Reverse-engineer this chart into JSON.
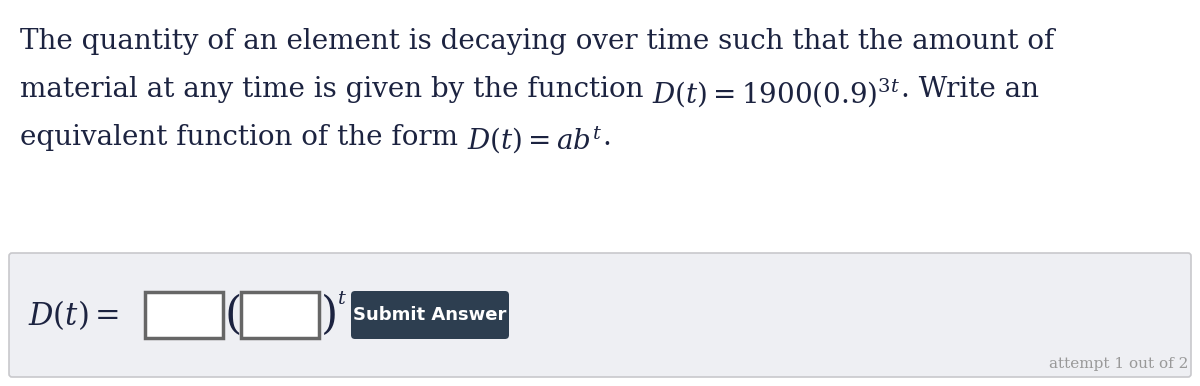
{
  "bg_color": "#ffffff",
  "answer_box_bg": "#eeeff3",
  "answer_box_border": "#c8c8cc",
  "input_box_color": "#ffffff",
  "input_box_border": "#666666",
  "button_color": "#2d3e50",
  "button_text_color": "#ffffff",
  "text_color": "#1c2340",
  "line1": "The quantity of an element is decaying over time such that the amount of",
  "line2_part1": "material at any time is given by the function ",
  "line2_math": "$D(t) = 1900(0.9)^{3t}$",
  "line2_part2": ". Write an",
  "line3_part1": "equivalent function of the form ",
  "line3_math": "$D(t) = ab^t$",
  "line3_part2": ".",
  "answer_label": "$D(t) =$",
  "submit_text": "Submit Answer",
  "attempt_text": "attempt 1 out of 2",
  "main_fontsize": 20,
  "math_fontsize": 20,
  "small_sup_fontsize": 14,
  "answer_fontsize": 22,
  "btn_fontsize": 13
}
